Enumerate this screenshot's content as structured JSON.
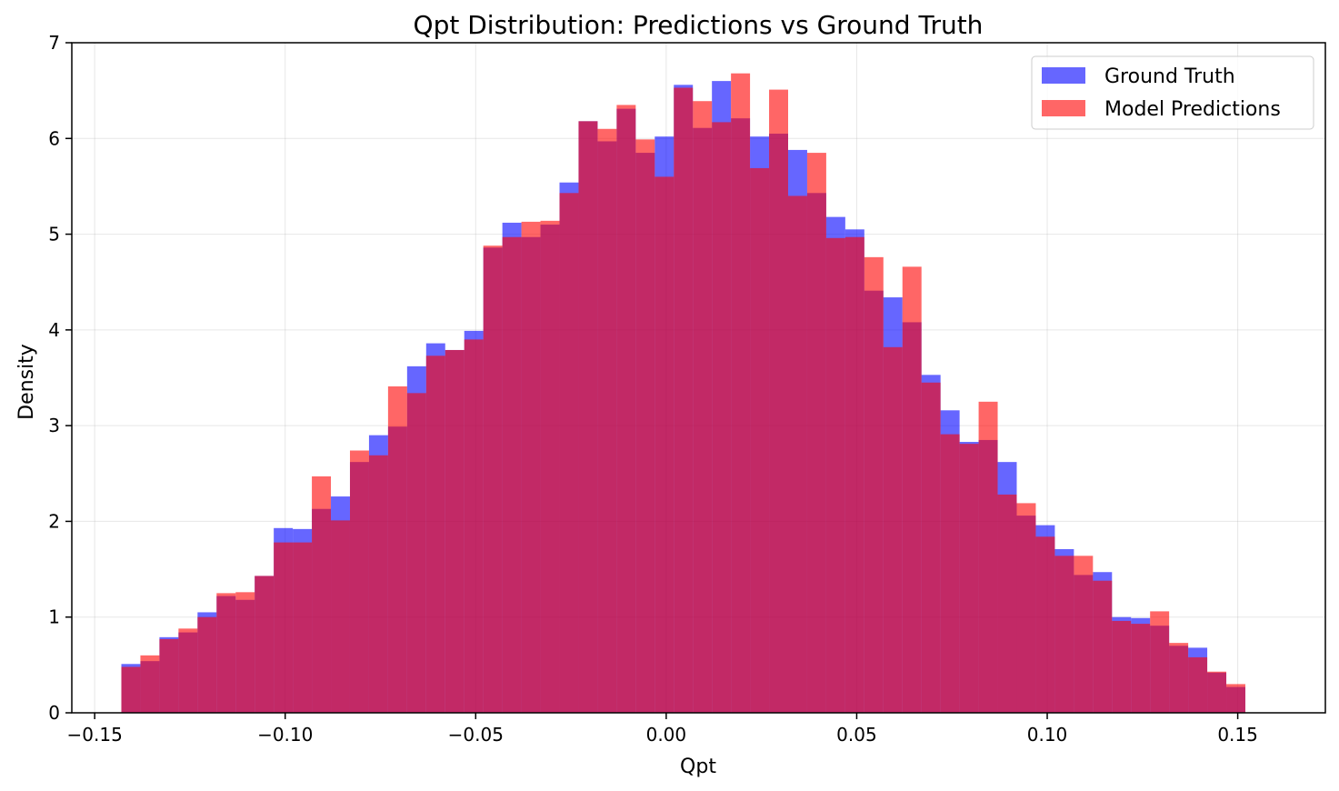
{
  "chart_data": {
    "type": "histogram",
    "title": "Qpt Distribution: Predictions vs Ground Truth",
    "xlabel": "Qpt",
    "ylabel": "Density",
    "xlim": [
      -0.156,
      0.173
    ],
    "ylim": [
      0,
      7
    ],
    "xticks": [
      -0.15,
      -0.1,
      -0.05,
      0.0,
      0.05,
      0.1,
      0.15
    ],
    "xtick_labels": [
      "−0.15",
      "−0.10",
      "−0.05",
      "0.00",
      "0.05",
      "0.10",
      "0.15"
    ],
    "yticks": [
      0,
      1,
      2,
      3,
      4,
      5,
      6,
      7
    ],
    "ytick_labels": [
      "0",
      "1",
      "2",
      "3",
      "4",
      "5",
      "6",
      "7"
    ],
    "grid": true,
    "legend_position": "top-right",
    "bin_start": -0.143,
    "bin_width": 0.005,
    "series": [
      {
        "name": "Ground Truth",
        "color": "#0000ff",
        "opacity": 0.6,
        "values": [
          0.51,
          0.54,
          0.79,
          0.84,
          1.05,
          1.22,
          1.18,
          1.43,
          1.93,
          1.92,
          2.13,
          2.26,
          2.62,
          2.9,
          2.99,
          3.62,
          3.86,
          3.79,
          3.99,
          4.86,
          5.12,
          4.97,
          5.1,
          5.54,
          6.18,
          5.97,
          6.31,
          5.85,
          6.02,
          6.56,
          6.11,
          6.6,
          6.21,
          6.02,
          6.05,
          5.88,
          5.43,
          5.18,
          5.05,
          4.41,
          4.34,
          4.08,
          3.53,
          3.16,
          2.83,
          2.85,
          2.62,
          2.06,
          1.96,
          1.71,
          1.44,
          1.47,
          1.0,
          0.99,
          0.91,
          0.7,
          0.68,
          0.42,
          0.27
        ]
      },
      {
        "name": "Model Predictions",
        "color": "#ff0000",
        "opacity": 0.6,
        "values": [
          0.48,
          0.6,
          0.77,
          0.88,
          1.0,
          1.25,
          1.26,
          1.43,
          1.78,
          1.78,
          2.47,
          2.01,
          2.74,
          2.69,
          3.41,
          3.34,
          3.73,
          3.79,
          3.9,
          4.88,
          4.97,
          5.13,
          5.14,
          5.43,
          6.18,
          6.1,
          6.35,
          5.99,
          5.6,
          6.53,
          6.39,
          6.17,
          6.68,
          5.69,
          6.51,
          5.4,
          5.85,
          4.96,
          4.97,
          4.76,
          3.82,
          4.66,
          3.45,
          2.91,
          2.81,
          3.25,
          2.28,
          2.19,
          1.84,
          1.64,
          1.64,
          1.38,
          0.96,
          0.93,
          1.06,
          0.73,
          0.58,
          0.43,
          0.3
        ]
      }
    ]
  }
}
